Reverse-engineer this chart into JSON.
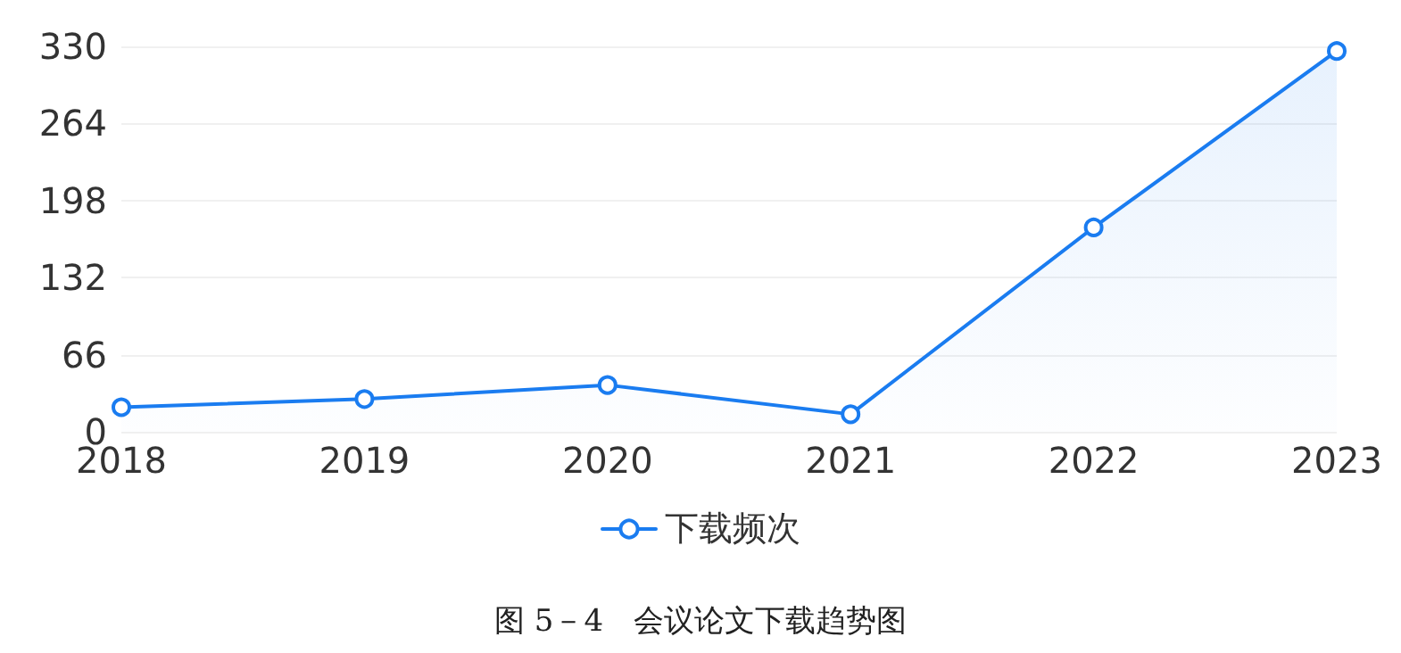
{
  "chart_data": {
    "type": "area",
    "title": "图 5－4　会议论文下载趋势图",
    "categories": [
      "2018",
      "2019",
      "2020",
      "2021",
      "2022",
      "2023"
    ],
    "series": [
      {
        "name": "下载频次",
        "color": "#1a7cf0",
        "values": [
          21,
          28,
          40,
          15,
          175,
          326
        ]
      }
    ],
    "ylim": [
      0,
      330
    ],
    "yticks": [
      0,
      66,
      132,
      198,
      264,
      330
    ],
    "grid": "y",
    "legend": "bottom",
    "marker": "circle"
  }
}
